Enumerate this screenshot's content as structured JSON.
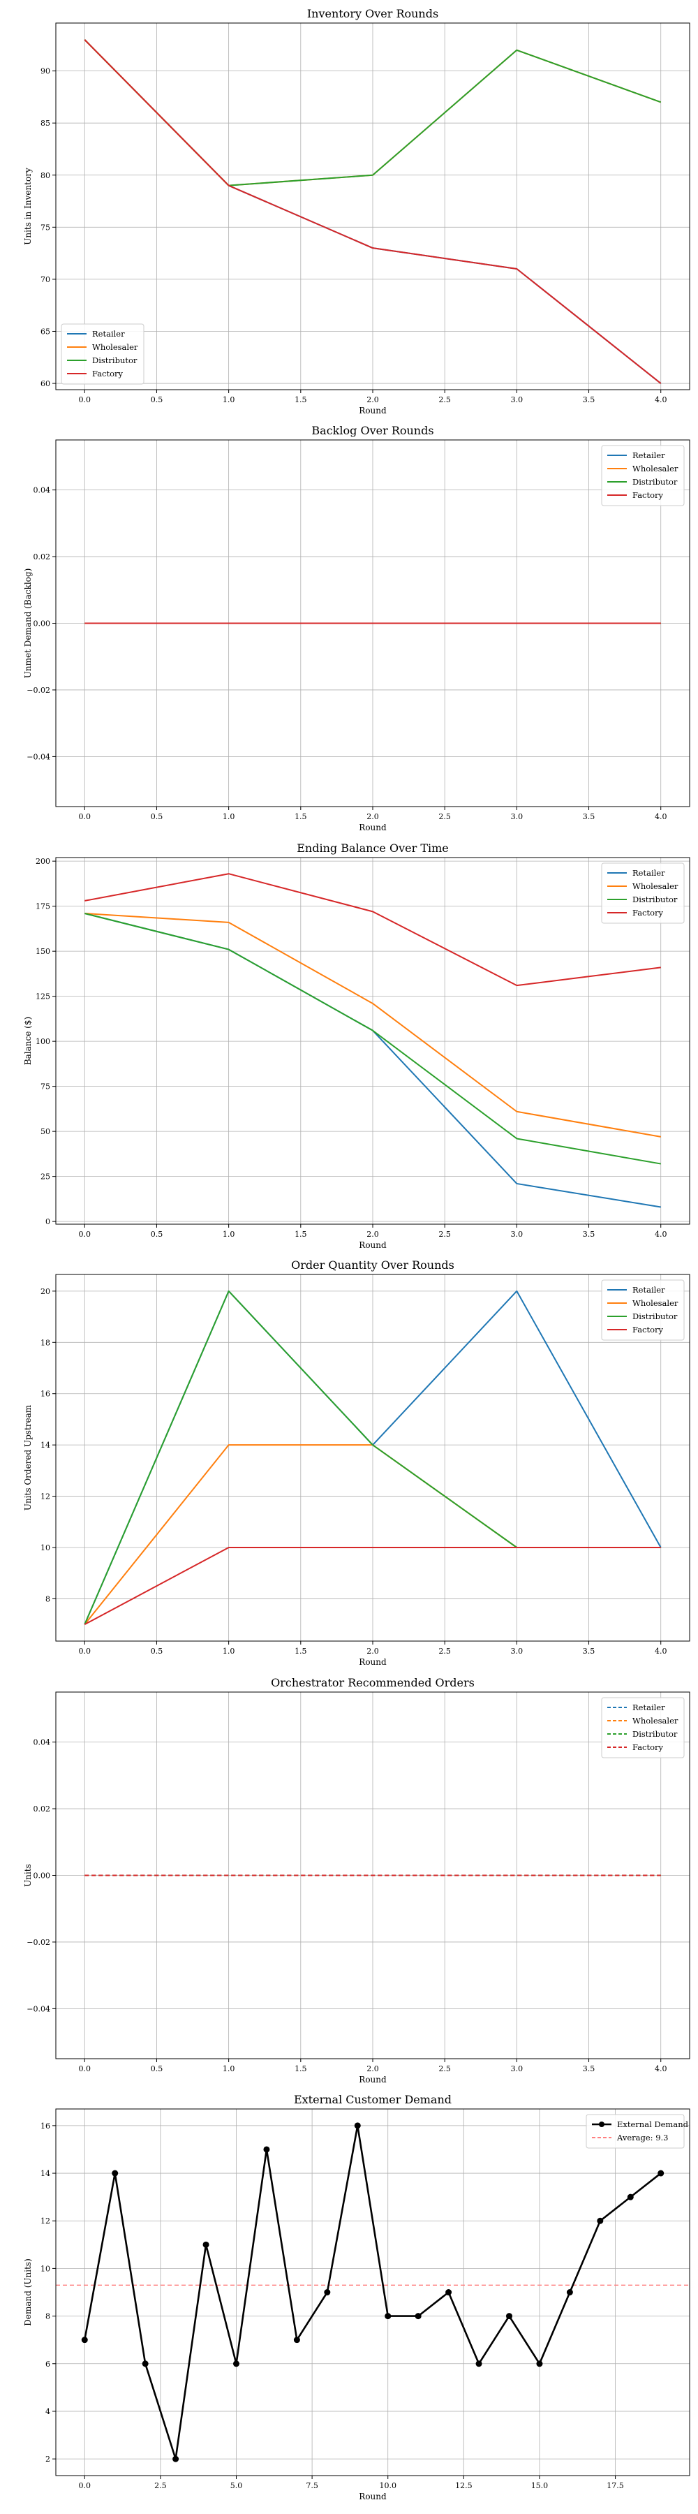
{
  "chart_data": [
    {
      "type": "line",
      "title": "Inventory Over Rounds",
      "xlabel": "Round",
      "ylabel": "Units in Inventory",
      "xlim": [
        -0.2,
        4.2
      ],
      "ylim": [
        59.4,
        94.6
      ],
      "xticks": [
        0.0,
        0.5,
        1.0,
        1.5,
        2.0,
        2.5,
        3.0,
        3.5,
        4.0
      ],
      "yticks": [
        60,
        65,
        70,
        75,
        80,
        85,
        90
      ],
      "xtick_decimals": 1,
      "ytick_decimals": 0,
      "grid": true,
      "legend_position": "bottom-left",
      "x": [
        0,
        1,
        2,
        3,
        4
      ],
      "series": [
        {
          "name": "Retailer",
          "color": "#1f77b4",
          "values": [
            93,
            79,
            73,
            71,
            60
          ],
          "style": "solid"
        },
        {
          "name": "Wholesaler",
          "color": "#ff7f0e",
          "values": [
            93,
            79,
            80,
            92,
            87
          ],
          "style": "solid"
        },
        {
          "name": "Distributor",
          "color": "#2ca02c",
          "values": [
            93,
            79,
            80,
            92,
            87
          ],
          "style": "solid"
        },
        {
          "name": "Factory",
          "color": "#d62728",
          "values": [
            93,
            79,
            73,
            71,
            60
          ],
          "style": "solid"
        }
      ]
    },
    {
      "type": "line",
      "title": "Backlog Over Rounds",
      "xlabel": "Round",
      "ylabel": "Unmet Demand (Backlog)",
      "xlim": [
        -0.2,
        4.2
      ],
      "ylim": [
        -0.055,
        0.055
      ],
      "xticks": [
        0.0,
        0.5,
        1.0,
        1.5,
        2.0,
        2.5,
        3.0,
        3.5,
        4.0
      ],
      "yticks": [
        -0.04,
        -0.02,
        0.0,
        0.02,
        0.04
      ],
      "xtick_decimals": 1,
      "ytick_decimals": 2,
      "grid": true,
      "legend_position": "top-right",
      "x": [
        0,
        1,
        2,
        3,
        4
      ],
      "series": [
        {
          "name": "Retailer",
          "color": "#1f77b4",
          "values": [
            0,
            0,
            0,
            0,
            0
          ],
          "style": "solid"
        },
        {
          "name": "Wholesaler",
          "color": "#ff7f0e",
          "values": [
            0,
            0,
            0,
            0,
            0
          ],
          "style": "solid"
        },
        {
          "name": "Distributor",
          "color": "#2ca02c",
          "values": [
            0,
            0,
            0,
            0,
            0
          ],
          "style": "solid"
        },
        {
          "name": "Factory",
          "color": "#d62728",
          "values": [
            0,
            0,
            0,
            0,
            0
          ],
          "style": "solid"
        }
      ]
    },
    {
      "type": "line",
      "title": "Ending Balance Over Time",
      "xlabel": "Round",
      "ylabel": "Balance ($)",
      "xlim": [
        -0.2,
        4.2
      ],
      "ylim": [
        -1.5,
        202
      ],
      "xticks": [
        0.0,
        0.5,
        1.0,
        1.5,
        2.0,
        2.5,
        3.0,
        3.5,
        4.0
      ],
      "yticks": [
        0,
        25,
        50,
        75,
        100,
        125,
        150,
        175,
        200
      ],
      "xtick_decimals": 1,
      "ytick_decimals": 0,
      "grid": true,
      "legend_position": "top-right",
      "x": [
        0,
        1,
        2,
        3,
        4
      ],
      "series": [
        {
          "name": "Retailer",
          "color": "#1f77b4",
          "values": [
            171,
            151,
            106,
            21,
            8
          ],
          "style": "solid"
        },
        {
          "name": "Wholesaler",
          "color": "#ff7f0e",
          "values": [
            171,
            166,
            121,
            61,
            47
          ],
          "style": "solid"
        },
        {
          "name": "Distributor",
          "color": "#2ca02c",
          "values": [
            171,
            151,
            106,
            46,
            32
          ],
          "style": "solid"
        },
        {
          "name": "Factory",
          "color": "#d62728",
          "values": [
            178,
            193,
            172,
            131,
            141
          ],
          "style": "solid"
        }
      ]
    },
    {
      "type": "line",
      "title": "Order Quantity Over Rounds",
      "xlabel": "Round",
      "ylabel": "Units Ordered Upstream",
      "xlim": [
        -0.2,
        4.2
      ],
      "ylim": [
        6.35,
        20.65
      ],
      "xticks": [
        0.0,
        0.5,
        1.0,
        1.5,
        2.0,
        2.5,
        3.0,
        3.5,
        4.0
      ],
      "yticks": [
        8,
        10,
        12,
        14,
        16,
        18,
        20
      ],
      "xtick_decimals": 1,
      "ytick_decimals": 0,
      "grid": true,
      "legend_position": "top-right",
      "x": [
        0,
        1,
        2,
        3,
        4
      ],
      "series": [
        {
          "name": "Retailer",
          "color": "#1f77b4",
          "values": [
            7,
            20,
            14,
            20,
            10
          ],
          "style": "solid"
        },
        {
          "name": "Wholesaler",
          "color": "#ff7f0e",
          "values": [
            7,
            14,
            14,
            10,
            10
          ],
          "style": "solid"
        },
        {
          "name": "Distributor",
          "color": "#2ca02c",
          "values": [
            7,
            20,
            14,
            10,
            10
          ],
          "style": "solid"
        },
        {
          "name": "Factory",
          "color": "#d62728",
          "values": [
            7,
            10,
            10,
            10,
            10
          ],
          "style": "solid"
        }
      ]
    },
    {
      "type": "line",
      "title": "Orchestrator Recommended Orders",
      "xlabel": "Round",
      "ylabel": "Units",
      "xlim": [
        -0.2,
        4.2
      ],
      "ylim": [
        -0.055,
        0.055
      ],
      "xticks": [
        0.0,
        0.5,
        1.0,
        1.5,
        2.0,
        2.5,
        3.0,
        3.5,
        4.0
      ],
      "yticks": [
        -0.04,
        -0.02,
        0.0,
        0.02,
        0.04
      ],
      "xtick_decimals": 1,
      "ytick_decimals": 2,
      "grid": true,
      "legend_position": "top-right",
      "x": [
        0,
        1,
        2,
        3,
        4
      ],
      "series": [
        {
          "name": "Retailer",
          "color": "#1f77b4",
          "values": [
            0,
            0,
            0,
            0,
            0
          ],
          "style": "dashed"
        },
        {
          "name": "Wholesaler",
          "color": "#ff7f0e",
          "values": [
            0,
            0,
            0,
            0,
            0
          ],
          "style": "dashed"
        },
        {
          "name": "Distributor",
          "color": "#2ca02c",
          "values": [
            0,
            0,
            0,
            0,
            0
          ],
          "style": "dashed"
        },
        {
          "name": "Factory",
          "color": "#d62728",
          "values": [
            0,
            0,
            0,
            0,
            0
          ],
          "style": "dashed"
        }
      ]
    },
    {
      "type": "line",
      "title": "External Customer Demand",
      "xlabel": "Round",
      "ylabel": "Demand (Units)",
      "xlim": [
        -0.95,
        19.95
      ],
      "ylim": [
        1.3,
        16.7
      ],
      "xticks": [
        0.0,
        2.5,
        5.0,
        7.5,
        10.0,
        12.5,
        15.0,
        17.5
      ],
      "yticks": [
        2,
        4,
        6,
        8,
        10,
        12,
        14,
        16
      ],
      "xtick_decimals": 1,
      "ytick_decimals": 0,
      "grid": true,
      "legend_position": "top-right",
      "x": [
        0,
        1,
        2,
        3,
        4,
        5,
        6,
        7,
        8,
        9,
        10,
        11,
        12,
        13,
        14,
        15,
        16,
        17,
        18,
        19
      ],
      "series": [
        {
          "name": "External Demand",
          "color": "#000000",
          "values": [
            7,
            14,
            6,
            2,
            11,
            6,
            15,
            7,
            9,
            16,
            8,
            8,
            9,
            6,
            8,
            6,
            9,
            12,
            13,
            14
          ],
          "style": "solid",
          "markers": true
        }
      ],
      "hlines": [
        {
          "name": "Average: 9.3",
          "value": 9.3,
          "color": "#ff7f7f",
          "style": "dashed"
        }
      ]
    }
  ]
}
